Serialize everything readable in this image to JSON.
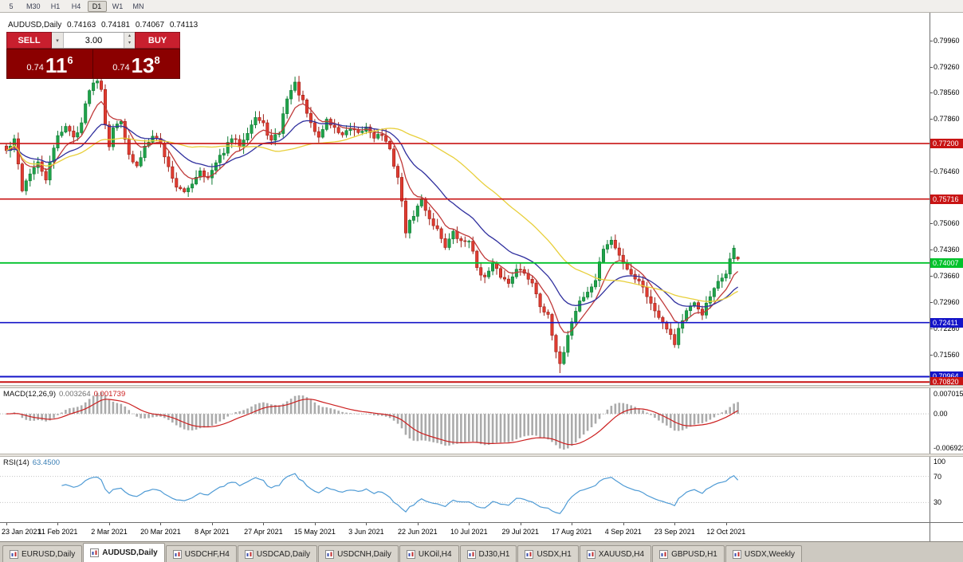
{
  "toolbar": {
    "timeframes": [
      {
        "label": "5",
        "active": false
      },
      {
        "label": "M30",
        "active": false
      },
      {
        "label": "H1",
        "active": false
      },
      {
        "label": "H4",
        "active": false
      },
      {
        "label": "D1",
        "active": true
      },
      {
        "label": "W1",
        "active": false
      },
      {
        "label": "MN",
        "active": false
      }
    ]
  },
  "chart_header": {
    "title": "AUDUSD,Daily",
    "open": "0.74163",
    "high": "0.74181",
    "low": "0.74067",
    "close": "0.74113"
  },
  "trade_panel": {
    "sell_label": "SELL",
    "buy_label": "BUY",
    "volume": "3.00",
    "sell_price": {
      "prefix": "0.74",
      "big": "11",
      "sup": "6"
    },
    "buy_price": {
      "prefix": "0.74",
      "big": "13",
      "sup": "8"
    }
  },
  "price_axis": {
    "top": 0.7996,
    "step": 0.007,
    "count": 14,
    "decimals": 5
  },
  "hlines": [
    {
      "price": 0.772,
      "label": "0.77200",
      "color": "#c81414",
      "width": 1.6
    },
    {
      "price": 0.75716,
      "label": "0.75716",
      "color": "#c81414",
      "width": 1.6
    },
    {
      "price": 0.74007,
      "label": "0.74007",
      "color": "#00c22b",
      "width": 1.8
    },
    {
      "price": 0.72411,
      "label": "0.72411",
      "color": "#1414c8",
      "width": 1.6
    },
    {
      "price": 0.70964,
      "label": "0.70964",
      "color": "#1414c8",
      "width": 2.0
    },
    {
      "price": 0.7082,
      "label": "0.70820",
      "color": "#c81414",
      "width": 2.0
    }
  ],
  "chart_data": {
    "type": "candlestick",
    "symbol": "AUDUSD",
    "timeframe": "Daily",
    "count": 186,
    "price_range": [
      0.7074,
      0.807
    ],
    "up_color": "#1fa34a",
    "up_border": "#0e7a33",
    "down_color": "#e03c31",
    "down_border": "#9c1f16",
    "moving_averages": [
      {
        "period": 8,
        "method": "ema",
        "color": "#c03a3a"
      },
      {
        "period": 21,
        "method": "ema",
        "color": "#2f2f9e"
      },
      {
        "period": 44,
        "method": "sma",
        "color": "#e8cf3a"
      }
    ],
    "spike_low": {
      "index": 140,
      "price": 0.7106
    },
    "last_ohlc": {
      "open": 0.74163,
      "high": 0.74181,
      "low": 0.74067,
      "close": 0.74113
    },
    "anchors": [
      [
        0,
        0.77
      ],
      [
        2,
        0.7728
      ],
      [
        4,
        0.7598
      ],
      [
        6,
        0.7642
      ],
      [
        8,
        0.7666
      ],
      [
        10,
        0.7626
      ],
      [
        13,
        0.7744
      ],
      [
        15,
        0.7766
      ],
      [
        17,
        0.7736
      ],
      [
        19,
        0.7776
      ],
      [
        21,
        0.7868
      ],
      [
        23,
        0.7894
      ],
      [
        24,
        0.7868
      ],
      [
        25,
        0.7776
      ],
      [
        26,
        0.7716
      ],
      [
        27,
        0.7758
      ],
      [
        29,
        0.7786
      ],
      [
        31,
        0.7686
      ],
      [
        33,
        0.7656
      ],
      [
        35,
        0.7714
      ],
      [
        37,
        0.7746
      ],
      [
        39,
        0.772
      ],
      [
        41,
        0.7656
      ],
      [
        43,
        0.7606
      ],
      [
        45,
        0.7586
      ],
      [
        47,
        0.7616
      ],
      [
        49,
        0.765
      ],
      [
        51,
        0.7626
      ],
      [
        53,
        0.7666
      ],
      [
        55,
        0.77
      ],
      [
        57,
        0.7734
      ],
      [
        59,
        0.7716
      ],
      [
        61,
        0.7754
      ],
      [
        63,
        0.779
      ],
      [
        65,
        0.777
      ],
      [
        67,
        0.7726
      ],
      [
        69,
        0.775
      ],
      [
        71,
        0.7844
      ],
      [
        73,
        0.788
      ],
      [
        75,
        0.783
      ],
      [
        77,
        0.777
      ],
      [
        79,
        0.7736
      ],
      [
        81,
        0.7784
      ],
      [
        83,
        0.776
      ],
      [
        85,
        0.7744
      ],
      [
        87,
        0.7756
      ],
      [
        89,
        0.7744
      ],
      [
        91,
        0.7764
      ],
      [
        93,
        0.774
      ],
      [
        95,
        0.7744
      ],
      [
        97,
        0.77
      ],
      [
        99,
        0.763
      ],
      [
        100,
        0.7562
      ],
      [
        101,
        0.7486
      ],
      [
        103,
        0.753
      ],
      [
        105,
        0.757
      ],
      [
        107,
        0.752
      ],
      [
        109,
        0.749
      ],
      [
        111,
        0.7446
      ],
      [
        113,
        0.748
      ],
      [
        115,
        0.7456
      ],
      [
        117,
        0.7464
      ],
      [
        119,
        0.739
      ],
      [
        121,
        0.736
      ],
      [
        123,
        0.7394
      ],
      [
        125,
        0.7366
      ],
      [
        127,
        0.7346
      ],
      [
        129,
        0.739
      ],
      [
        131,
        0.737
      ],
      [
        133,
        0.735
      ],
      [
        135,
        0.729
      ],
      [
        137,
        0.7256
      ],
      [
        139,
        0.7156
      ],
      [
        140,
        0.7136
      ],
      [
        141,
        0.7166
      ],
      [
        143,
        0.7246
      ],
      [
        145,
        0.73
      ],
      [
        147,
        0.732
      ],
      [
        149,
        0.7356
      ],
      [
        151,
        0.744
      ],
      [
        153,
        0.746
      ],
      [
        155,
        0.742
      ],
      [
        157,
        0.7386
      ],
      [
        159,
        0.736
      ],
      [
        161,
        0.734
      ],
      [
        163,
        0.729
      ],
      [
        165,
        0.726
      ],
      [
        167,
        0.723
      ],
      [
        169,
        0.7186
      ],
      [
        170,
        0.7226
      ],
      [
        172,
        0.727
      ],
      [
        174,
        0.729
      ],
      [
        176,
        0.7266
      ],
      [
        178,
        0.731
      ],
      [
        180,
        0.7346
      ],
      [
        182,
        0.7376
      ],
      [
        183,
        0.741
      ],
      [
        184,
        0.7436
      ],
      [
        185,
        0.74113
      ]
    ]
  },
  "macd_panel": {
    "label": "MACD(12,26,9)",
    "value_main": "0.003264",
    "value_signal": "0.001739",
    "axis_labels": [
      "0.007015",
      "0.00",
      "-0.006923"
    ],
    "histogram_color": "#ababab",
    "signal_color": "#cc2020"
  },
  "rsi_panel": {
    "label": "RSI(14)",
    "value": "63.4500",
    "levels": [
      100,
      70,
      30
    ],
    "line_color": "#4f9bd5"
  },
  "time_axis": {
    "labels": [
      "23 Jan 2021",
      "11 Feb 2021",
      "2 Mar 2021",
      "20 Mar 2021",
      "8 Apr 2021",
      "27 Apr 2021",
      "15 May 2021",
      "3 Jun 2021",
      "22 Jun 2021",
      "10 Jul 2021",
      "29 Jul 2021",
      "17 Aug 2021",
      "4 Sep 2021",
      "23 Sep 2021",
      "12 Oct 2021"
    ]
  },
  "tabs": {
    "items": [
      {
        "label": "EURUSD,Daily",
        "active": false
      },
      {
        "label": "AUDUSD,Daily",
        "active": true
      },
      {
        "label": "USDCHF,H4",
        "active": false
      },
      {
        "label": "USDCAD,Daily",
        "active": false
      },
      {
        "label": "USDCNH,Daily",
        "active": false
      },
      {
        "label": "UKOil,H4",
        "active": false
      },
      {
        "label": "DJ30,H1",
        "active": false
      },
      {
        "label": "USDX,H1",
        "active": false
      },
      {
        "label": "XAUUSD,H4",
        "active": false
      },
      {
        "label": "GBPUSD,H1",
        "active": false
      },
      {
        "label": "USDX,Weekly",
        "active": false
      }
    ]
  }
}
